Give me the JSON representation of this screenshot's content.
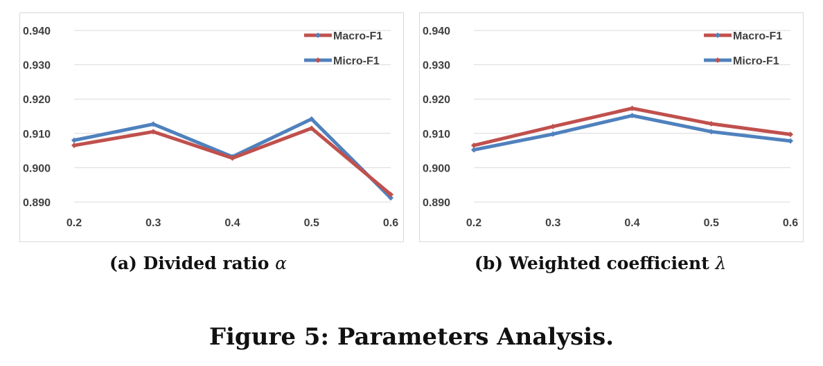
{
  "chart_data": [
    {
      "type": "line",
      "categories": [
        "0.2",
        "0.3",
        "0.4",
        "0.5",
        "0.6"
      ],
      "yticks": [
        "0.940",
        "0.930",
        "0.920",
        "0.910",
        "0.900",
        "0.890"
      ],
      "ylim": [
        0.89,
        0.94
      ],
      "grid": true,
      "legend_position": "top-right",
      "series": [
        {
          "name": "Macro-F1",
          "color": "#4f81bd",
          "values": [
            0.908,
            0.9127,
            0.9032,
            0.9142,
            0.8912
          ]
        },
        {
          "name": "Micro-F1",
          "color": "#c0504d",
          "values": [
            0.9065,
            0.9105,
            0.9028,
            0.9115,
            0.8922
          ]
        }
      ],
      "legend_style": [
        {
          "line": "#c0504d",
          "marker": "#4f81bd"
        },
        {
          "line": "#4f81bd",
          "marker": "#c0504d"
        }
      ],
      "caption_prefix": "(a) Divided ratio ",
      "caption_symbol": "α"
    },
    {
      "type": "line",
      "categories": [
        "0.2",
        "0.3",
        "0.4",
        "0.5",
        "0.6"
      ],
      "yticks": [
        "0.940",
        "0.930",
        "0.920",
        "0.910",
        "0.900",
        "0.890"
      ],
      "ylim": [
        0.89,
        0.94
      ],
      "grid": true,
      "legend_position": "top-right",
      "series": [
        {
          "name": "Macro-F1",
          "color": "#4f81bd",
          "values": [
            0.9052,
            0.9098,
            0.9152,
            0.9105,
            0.9078
          ]
        },
        {
          "name": "Micro-F1",
          "color": "#c0504d",
          "values": [
            0.9065,
            0.912,
            0.9173,
            0.9128,
            0.9097
          ]
        }
      ],
      "legend_style": [
        {
          "line": "#c0504d",
          "marker": "#4f81bd"
        },
        {
          "line": "#4f81bd",
          "marker": "#c0504d"
        }
      ],
      "caption_prefix": "(b) Weighted coefficient ",
      "caption_symbol": "λ"
    }
  ],
  "figure_caption": "Figure 5: Parameters Analysis."
}
